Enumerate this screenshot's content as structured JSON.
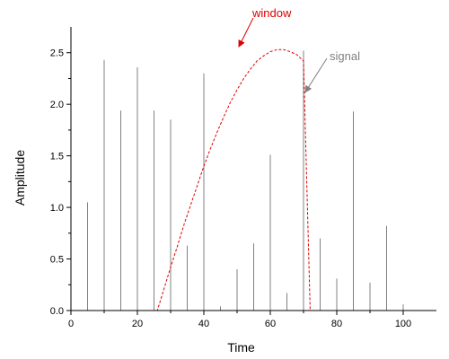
{
  "chart_data": {
    "type": "bar",
    "title": "",
    "xlabel": "Time",
    "ylabel": "Amplitude",
    "xlim": [
      0,
      110
    ],
    "ylim": [
      0,
      2.75
    ],
    "grid": false,
    "legend": "none",
    "x_ticks": [
      0,
      20,
      40,
      60,
      80,
      100
    ],
    "x_tick_labels": [
      "0",
      "20",
      "40",
      "60",
      "80",
      "100"
    ],
    "y_ticks": [
      0.0,
      0.5,
      1.0,
      1.5,
      2.0,
      2.5
    ],
    "y_tick_labels": [
      "0.0",
      "0.5",
      "1.0",
      "1.5",
      "2.0",
      "2.5"
    ],
    "series": [
      {
        "type": "bar",
        "color": "#808080",
        "x": [
          5,
          10,
          15,
          20,
          25,
          30,
          35,
          40,
          45,
          50,
          55,
          60,
          65,
          70,
          75,
          80,
          85,
          90,
          95,
          100
        ],
        "values": [
          1.05,
          2.43,
          1.94,
          2.36,
          1.94,
          1.85,
          0.63,
          2.3,
          0.04,
          0.4,
          0.65,
          1.51,
          0.17,
          2.52,
          0.7,
          0.31,
          1.93,
          0.27,
          0.82,
          0.06
        ]
      },
      {
        "type": "line",
        "color": "#dd0000",
        "style": "dashed",
        "x": [
          0,
          26,
          28,
          30,
          32,
          34,
          36,
          38,
          40,
          42,
          44,
          46,
          48,
          50,
          52,
          54,
          56,
          58,
          60,
          62,
          64,
          66,
          68,
          70,
          72,
          74,
          100
        ],
        "values": [
          0,
          0,
          0.21,
          0.42,
          0.62,
          0.83,
          1.02,
          1.21,
          1.4,
          1.57,
          1.73,
          1.88,
          2.02,
          2.14,
          2.25,
          2.34,
          2.42,
          2.47,
          2.51,
          2.53,
          2.53,
          2.51,
          2.48,
          2.42,
          0,
          0,
          0
        ]
      }
    ],
    "annotations": [
      {
        "text": "window",
        "color": "#dd0000",
        "target_x": 50,
        "target_y": 2.55
      },
      {
        "text": "signal",
        "color": "#808080",
        "target_x": 70,
        "target_y": 2.1
      }
    ]
  }
}
